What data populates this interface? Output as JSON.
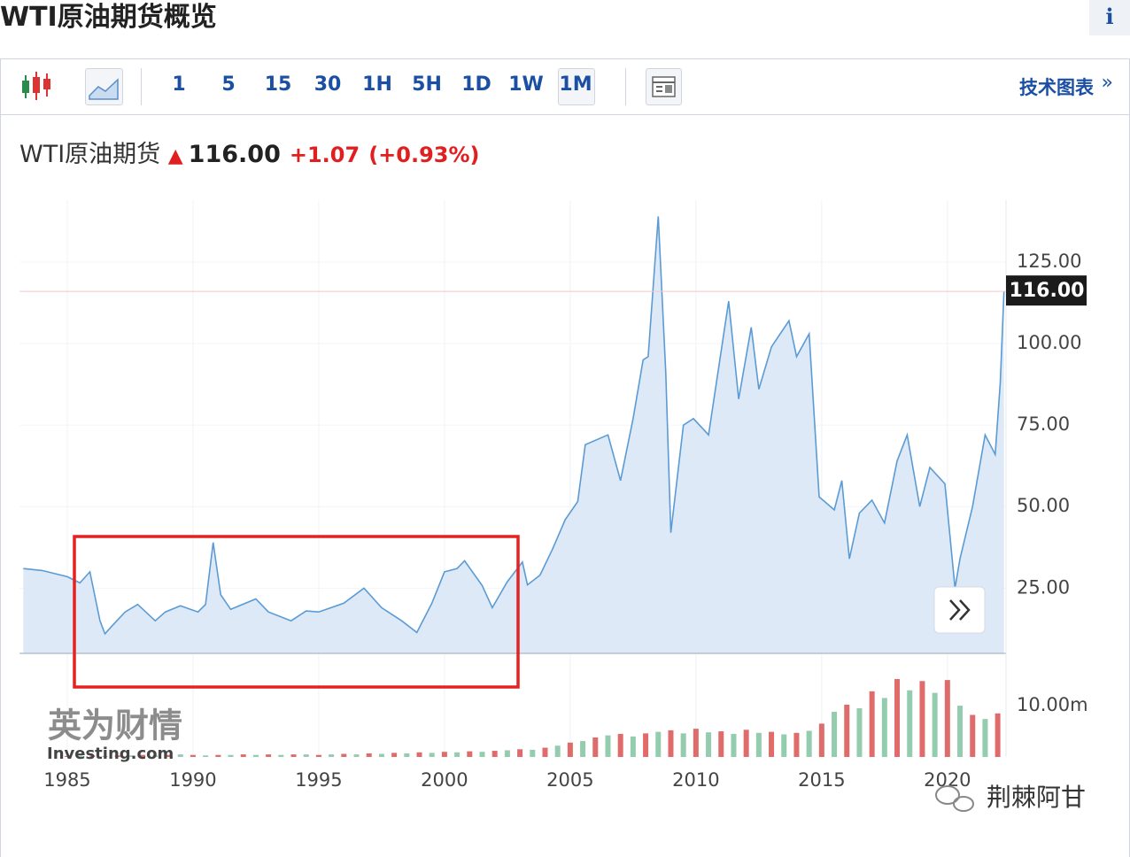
{
  "header": {
    "title": "WTI原油期货概览",
    "info": "i"
  },
  "toolbar": {
    "intervals": [
      "1",
      "5",
      "15",
      "30",
      "1H",
      "5H",
      "1D",
      "1W",
      "1M"
    ],
    "active": "1M",
    "tech_chart": "技术图表",
    "tech_arrow": "»"
  },
  "quote": {
    "name": "WTI原油期货",
    "price": "116.00",
    "change": "+1.07",
    "change_pct": "(+0.93%)"
  },
  "watermarks": {
    "brand": "英为财情",
    "site": "Investing.com",
    "author": "荆棘阿甘"
  },
  "chart_data": {
    "type": "area",
    "color": "#5b9bd5",
    "fill": "#dde9f6",
    "x": [
      1983.25,
      1984,
      1985,
      1985.5,
      1985.9,
      1986.3,
      1986.5,
      1986.8,
      1987.3,
      1987.8,
      1988.5,
      1988.9,
      1989.5,
      1990.2,
      1990.5,
      1990.8,
      1991.1,
      1991.5,
      1992.5,
      1993,
      1993.9,
      1994.5,
      1995,
      1996,
      1996.8,
      1997.5,
      1998.3,
      1998.9,
      1999.5,
      2000,
      2000.5,
      2000.8,
      2001.5,
      2001.9,
      2002.5,
      2003.1,
      2003.3,
      2003.8,
      2004.3,
      2004.8,
      2005.3,
      2005.6,
      2006.5,
      2007,
      2007.5,
      2007.9,
      2008.1,
      2008.5,
      2008.8,
      2009,
      2009.5,
      2009.9,
      2010.5,
      2011.3,
      2011.7,
      2012.2,
      2012.5,
      2013,
      2013.7,
      2014,
      2014.5,
      2014.9,
      2015.5,
      2015.8,
      2016.1,
      2016.5,
      2017,
      2017.5,
      2018,
      2018.4,
      2018.9,
      2019.3,
      2019.9,
      2020.3,
      2020.5,
      2021,
      2021.5,
      2021.9,
      2022.1,
      2022.25
    ],
    "values": [
      31,
      30.4,
      28.5,
      26.6,
      30,
      15,
      11,
      13.6,
      17.7,
      20,
      15,
      17.7,
      19.6,
      17.7,
      20,
      39,
      23,
      18.5,
      21.7,
      17.7,
      15,
      18,
      17.7,
      20.4,
      25,
      19,
      15,
      11.4,
      20.4,
      30,
      31,
      33.4,
      25.8,
      19,
      27,
      33,
      26,
      29,
      37,
      46,
      51.6,
      69,
      72,
      58,
      77,
      95,
      96,
      139,
      91,
      42,
      75,
      77,
      72,
      113,
      83,
      105,
      86,
      99,
      107,
      96,
      103,
      53,
      49,
      58,
      34,
      48,
      52,
      45,
      64,
      72,
      50,
      62,
      57,
      25,
      34,
      50,
      72,
      66,
      88,
      116
    ],
    "xlim": [
      1983.1,
      2022.33
    ],
    "xticks": [
      1985,
      1990,
      1995,
      2000,
      2005,
      2010,
      2015,
      2020
    ],
    "ylim": [
      5,
      144
    ],
    "yticks": [
      {
        "value": 25,
        "label": "25.00"
      },
      {
        "value": 50,
        "label": "50.00"
      },
      {
        "value": 75,
        "label": "75.00"
      },
      {
        "value": 100,
        "label": "100.00"
      },
      {
        "value": 125,
        "label": "125.00"
      }
    ],
    "current": {
      "value": 116,
      "label": "116.00"
    },
    "grid": true,
    "volume": {
      "type": "bar",
      "ylim": [
        0,
        20.2
      ],
      "yticks": [
        {
          "value": 10,
          "label": "10.00m"
        }
      ],
      "series": [
        {
          "color": "#e06b6b",
          "x": [
            1985,
            1986,
            1987,
            1988,
            1989,
            1990,
            1991,
            1992,
            1993,
            1994,
            1995,
            1996,
            1997,
            1998,
            1999,
            2000,
            2001,
            2002,
            2003,
            2004,
            2005,
            2006,
            2007,
            2008,
            2009,
            2010,
            2011,
            2012,
            2013,
            2014,
            2015,
            2016,
            2017,
            2018,
            2019,
            2020,
            2021,
            2022
          ],
          "values": [
            0.2,
            0.3,
            0.3,
            0.4,
            0.4,
            0.4,
            0.4,
            0.5,
            0.5,
            0.5,
            0.4,
            0.6,
            0.7,
            0.8,
            0.9,
            1.0,
            1.1,
            1.2,
            1.5,
            1.8,
            2.8,
            3.8,
            4.5,
            4.6,
            5.2,
            5.5,
            5.0,
            5.3,
            4.9,
            4.7,
            6.5,
            10.2,
            12.8,
            15.2,
            14.8,
            15.0,
            8.2,
            8.5
          ]
        },
        {
          "color": "#93ccae",
          "x": [
            1985.5,
            1986.5,
            1987.5,
            1988.5,
            1989.5,
            1990.5,
            1991.5,
            1992.5,
            1993.5,
            1994.5,
            1995.5,
            1996.5,
            1997.5,
            1998.5,
            1999.5,
            2000.5,
            2001.5,
            2002.5,
            2003.5,
            2004.5,
            2005.5,
            2006.5,
            2007.5,
            2008.5,
            2009.5,
            2010.5,
            2011.5,
            2012.5,
            2013.5,
            2014.5,
            2015.5,
            2016.5,
            2017.5,
            2018.5,
            2019.5,
            2020.5,
            2021.5
          ],
          "values": [
            0.3,
            0.2,
            0.3,
            0.3,
            0.5,
            0.3,
            0.4,
            0.4,
            0.4,
            0.5,
            0.5,
            0.5,
            0.6,
            0.7,
            0.8,
            0.9,
            1.0,
            1.3,
            1.4,
            2.2,
            3.1,
            4.2,
            4.0,
            4.9,
            4.6,
            4.8,
            4.5,
            4.7,
            4.4,
            5.1,
            8.8,
            9.5,
            11.5,
            13.0,
            12.5,
            10.0,
            7.4
          ]
        }
      ]
    }
  }
}
